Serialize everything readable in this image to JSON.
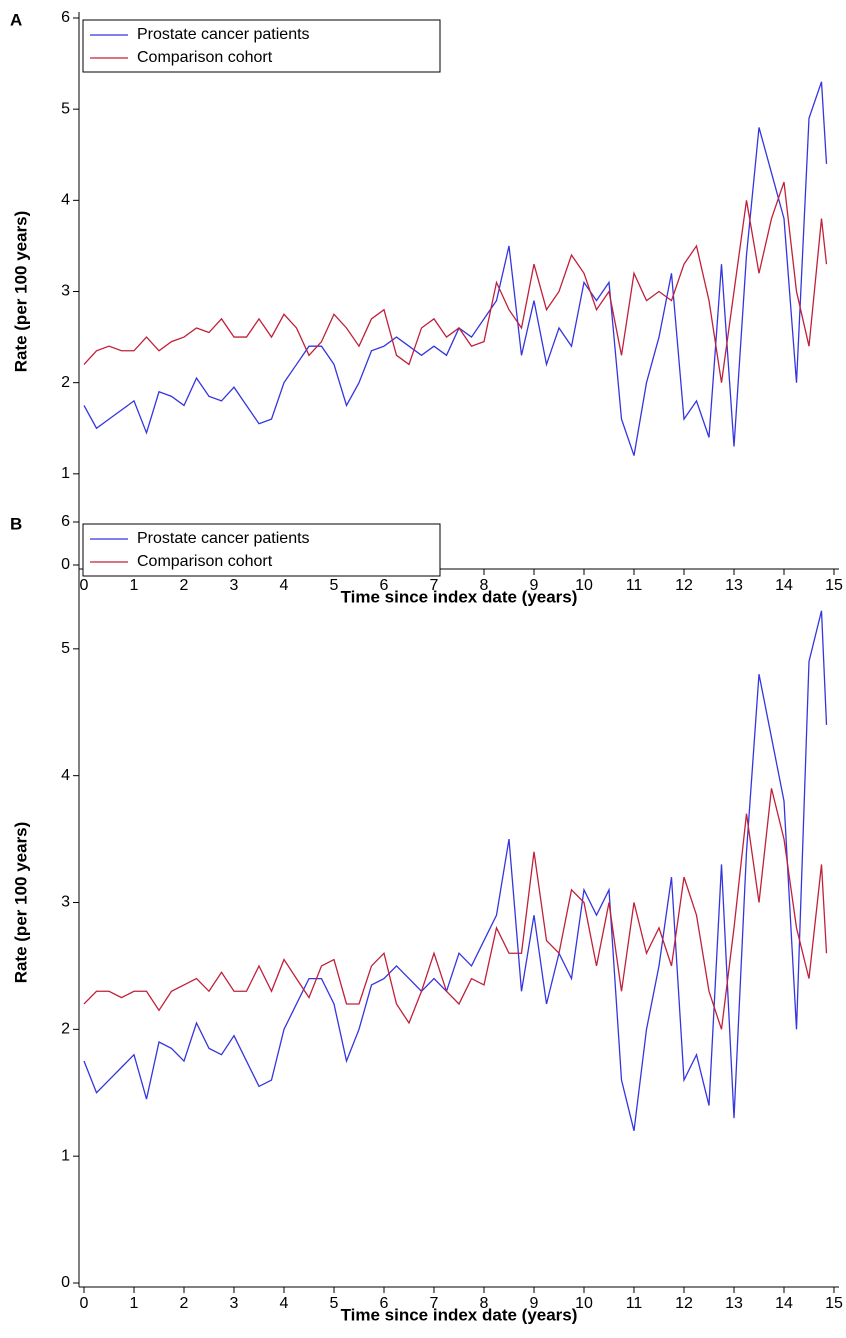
{
  "chart_data": [
    {
      "type": "line",
      "panel_label": "A",
      "xlabel": "Time since index date (years)",
      "ylabel": "Rate (per 100 years)",
      "legend": "upper left",
      "xlim": [
        -0.1,
        15.1
      ],
      "ylim": [
        0,
        6
      ],
      "xticks": [
        0,
        1,
        2,
        3,
        4,
        5,
        6,
        7,
        8,
        9,
        10,
        11,
        12,
        13,
        14,
        15
      ],
      "yticks": [
        0,
        1,
        2,
        3,
        4,
        5,
        6
      ],
      "x": [
        0,
        0.25,
        0.5,
        0.75,
        1,
        1.25,
        1.5,
        1.75,
        2,
        2.25,
        2.5,
        2.75,
        3,
        3.25,
        3.5,
        3.75,
        4,
        4.25,
        4.5,
        4.75,
        5,
        5.25,
        5.5,
        5.75,
        6,
        6.25,
        6.5,
        6.75,
        7,
        7.25,
        7.5,
        7.75,
        8,
        8.25,
        8.5,
        8.75,
        9,
        9.25,
        9.5,
        9.75,
        10,
        10.25,
        10.5,
        10.75,
        11,
        11.25,
        11.5,
        11.75,
        12,
        12.25,
        12.5,
        12.75,
        13,
        13.25,
        13.5,
        13.75,
        14,
        14.25,
        14.5,
        14.75,
        14.85
      ],
      "series": [
        {
          "name": "Prostate cancer patients",
          "color": "#3535e0",
          "values": [
            1.75,
            1.5,
            1.6,
            1.7,
            1.8,
            1.45,
            1.9,
            1.85,
            1.75,
            2.05,
            1.85,
            1.8,
            1.95,
            1.75,
            1.55,
            1.6,
            2.0,
            2.2,
            2.4,
            2.4,
            2.2,
            1.75,
            2.0,
            2.35,
            2.4,
            2.5,
            2.4,
            2.3,
            2.4,
            2.3,
            2.6,
            2.5,
            2.7,
            2.9,
            3.5,
            2.3,
            2.9,
            2.2,
            2.6,
            2.4,
            3.1,
            2.9,
            3.1,
            1.6,
            1.2,
            2.0,
            2.5,
            3.2,
            1.6,
            1.8,
            1.4,
            3.3,
            1.3,
            3.4,
            4.8,
            4.3,
            3.8,
            2.0,
            4.9,
            5.3,
            4.4
          ]
        },
        {
          "name": "Comparison cohort",
          "color": "#c0203a",
          "values": [
            2.2,
            2.35,
            2.4,
            2.35,
            2.35,
            2.5,
            2.35,
            2.45,
            2.5,
            2.6,
            2.55,
            2.7,
            2.5,
            2.5,
            2.7,
            2.5,
            2.75,
            2.6,
            2.3,
            2.45,
            2.75,
            2.6,
            2.4,
            2.7,
            2.8,
            2.3,
            2.2,
            2.6,
            2.7,
            2.5,
            2.6,
            2.4,
            2.45,
            3.1,
            2.8,
            2.6,
            3.3,
            2.8,
            3.0,
            3.4,
            3.2,
            2.8,
            3.0,
            2.3,
            3.2,
            2.9,
            3.0,
            2.9,
            3.3,
            3.5,
            2.9,
            2.0,
            3.0,
            4.0,
            3.2,
            3.8,
            4.2,
            3.0,
            2.4,
            3.8,
            3.3
          ]
        }
      ]
    },
    {
      "type": "line",
      "panel_label": "B",
      "xlabel": "Time since index date (years)",
      "ylabel": "Rate (per 100 years)",
      "legend": "upper left",
      "xlim": [
        -0.1,
        15.1
      ],
      "ylim": [
        0,
        6
      ],
      "xticks": [
        0,
        1,
        2,
        3,
        4,
        5,
        6,
        7,
        8,
        9,
        10,
        11,
        12,
        13,
        14,
        15
      ],
      "yticks": [
        0,
        1,
        2,
        3,
        4,
        5,
        6
      ],
      "x": [
        0,
        0.25,
        0.5,
        0.75,
        1,
        1.25,
        1.5,
        1.75,
        2,
        2.25,
        2.5,
        2.75,
        3,
        3.25,
        3.5,
        3.75,
        4,
        4.25,
        4.5,
        4.75,
        5,
        5.25,
        5.5,
        5.75,
        6,
        6.25,
        6.5,
        6.75,
        7,
        7.25,
        7.5,
        7.75,
        8,
        8.25,
        8.5,
        8.75,
        9,
        9.25,
        9.5,
        9.75,
        10,
        10.25,
        10.5,
        10.75,
        11,
        11.25,
        11.5,
        11.75,
        12,
        12.25,
        12.5,
        12.75,
        13,
        13.25,
        13.5,
        13.75,
        14,
        14.25,
        14.5,
        14.75,
        14.85
      ],
      "series": [
        {
          "name": "Prostate cancer patients",
          "color": "#3535e0",
          "values": [
            1.75,
            1.5,
            1.6,
            1.7,
            1.8,
            1.45,
            1.9,
            1.85,
            1.75,
            2.05,
            1.85,
            1.8,
            1.95,
            1.75,
            1.55,
            1.6,
            2.0,
            2.2,
            2.4,
            2.4,
            2.2,
            1.75,
            2.0,
            2.35,
            2.4,
            2.5,
            2.4,
            2.3,
            2.4,
            2.3,
            2.6,
            2.5,
            2.7,
            2.9,
            3.5,
            2.3,
            2.9,
            2.2,
            2.6,
            2.4,
            3.1,
            2.9,
            3.1,
            1.6,
            1.2,
            2.0,
            2.5,
            3.2,
            1.6,
            1.8,
            1.4,
            3.3,
            1.3,
            3.4,
            4.8,
            4.3,
            3.8,
            2.0,
            4.9,
            5.3,
            4.4
          ]
        },
        {
          "name": "Comparison cohort",
          "color": "#c0203a",
          "values": [
            2.2,
            2.3,
            2.3,
            2.25,
            2.3,
            2.3,
            2.15,
            2.3,
            2.35,
            2.4,
            2.3,
            2.45,
            2.3,
            2.3,
            2.5,
            2.3,
            2.55,
            2.4,
            2.25,
            2.5,
            2.55,
            2.2,
            2.2,
            2.5,
            2.6,
            2.2,
            2.05,
            2.3,
            2.6,
            2.3,
            2.2,
            2.4,
            2.35,
            2.8,
            2.6,
            2.6,
            3.4,
            2.7,
            2.6,
            3.1,
            3.0,
            2.5,
            3.0,
            2.3,
            3.0,
            2.6,
            2.8,
            2.5,
            3.2,
            2.9,
            2.3,
            2.0,
            2.8,
            3.7,
            3.0,
            3.9,
            3.5,
            2.8,
            2.4,
            3.3,
            2.6
          ]
        }
      ]
    }
  ]
}
